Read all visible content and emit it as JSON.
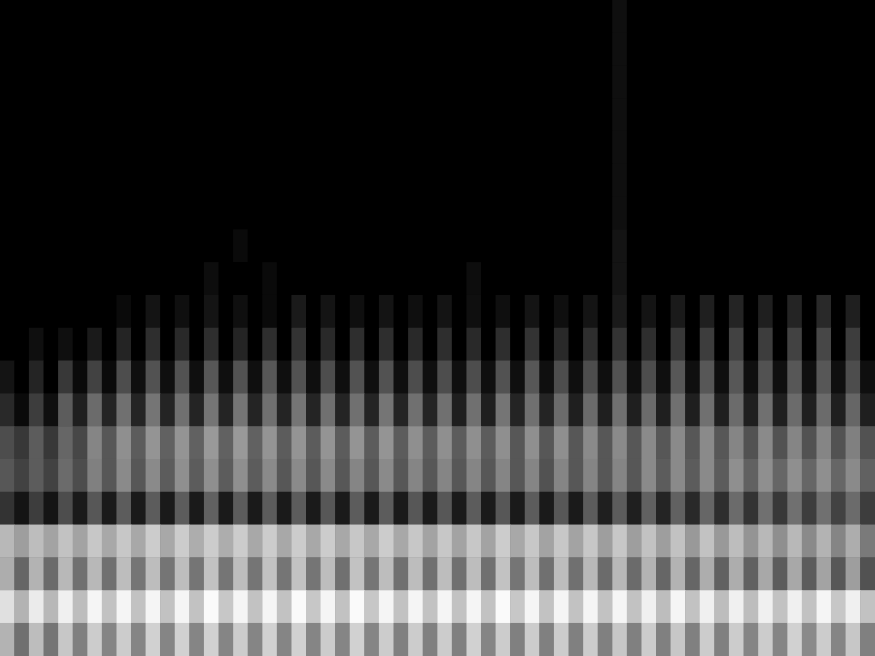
{
  "chart_data": {
    "type": "heatmap",
    "tick_labels": false,
    "grid": false,
    "zlim": [
      0,
      100
    ],
    "cells": [
      [
        0,
        0,
        0,
        0,
        0,
        0,
        0,
        0,
        0,
        0,
        0,
        0,
        0,
        0,
        0,
        0,
        0,
        0,
        0,
        0,
        0,
        0,
        0,
        0,
        0,
        0,
        0,
        0,
        0,
        0,
        0,
        0,
        0,
        0,
        0,
        0,
        0,
        0,
        0,
        0,
        0,
        0,
        6,
        0,
        0,
        0,
        0,
        0,
        0,
        0,
        0,
        0,
        0,
        0,
        0,
        0,
        0,
        0,
        0,
        0
      ],
      [
        0,
        0,
        0,
        0,
        0,
        0,
        0,
        0,
        0,
        0,
        0,
        0,
        0,
        0,
        0,
        0,
        0,
        0,
        0,
        0,
        0,
        0,
        0,
        0,
        0,
        0,
        0,
        0,
        0,
        0,
        0,
        0,
        0,
        0,
        0,
        0,
        0,
        0,
        0,
        0,
        0,
        0,
        6,
        0,
        0,
        0,
        0,
        0,
        0,
        0,
        0,
        0,
        0,
        0,
        0,
        0,
        0,
        0,
        0,
        0
      ],
      [
        0,
        0,
        0,
        0,
        0,
        0,
        0,
        0,
        0,
        0,
        0,
        0,
        0,
        0,
        0,
        0,
        0,
        0,
        0,
        0,
        0,
        0,
        0,
        0,
        0,
        0,
        0,
        0,
        0,
        0,
        0,
        0,
        0,
        0,
        0,
        0,
        0,
        0,
        0,
        0,
        0,
        0,
        6,
        0,
        0,
        0,
        0,
        0,
        0,
        0,
        0,
        0,
        0,
        0,
        0,
        0,
        0,
        0,
        0,
        0
      ],
      [
        0,
        0,
        0,
        0,
        0,
        0,
        0,
        0,
        0,
        0,
        0,
        0,
        0,
        0,
        0,
        0,
        0,
        0,
        0,
        0,
        0,
        0,
        0,
        0,
        0,
        0,
        0,
        0,
        0,
        0,
        0,
        0,
        0,
        0,
        0,
        0,
        0,
        0,
        0,
        0,
        0,
        0,
        6,
        0,
        0,
        0,
        0,
        0,
        0,
        0,
        0,
        0,
        0,
        0,
        0,
        0,
        0,
        0,
        0,
        0
      ],
      [
        0,
        0,
        0,
        0,
        0,
        0,
        0,
        0,
        0,
        0,
        0,
        0,
        0,
        0,
        0,
        0,
        0,
        0,
        0,
        0,
        0,
        0,
        0,
        0,
        0,
        0,
        0,
        0,
        0,
        0,
        0,
        0,
        0,
        0,
        0,
        0,
        0,
        0,
        0,
        0,
        0,
        0,
        6,
        0,
        0,
        0,
        0,
        0,
        0,
        0,
        0,
        0,
        0,
        0,
        0,
        0,
        0,
        0,
        0,
        0
      ],
      [
        0,
        0,
        0,
        0,
        0,
        0,
        0,
        0,
        0,
        0,
        0,
        0,
        0,
        0,
        0,
        0,
        0,
        0,
        0,
        0,
        0,
        0,
        0,
        0,
        0,
        0,
        0,
        0,
        0,
        0,
        0,
        0,
        0,
        0,
        0,
        0,
        0,
        0,
        0,
        0,
        0,
        0,
        6,
        0,
        0,
        0,
        0,
        0,
        0,
        0,
        0,
        0,
        0,
        0,
        0,
        0,
        0,
        0,
        0,
        0
      ],
      [
        0,
        0,
        0,
        0,
        0,
        0,
        0,
        0,
        0,
        0,
        0,
        0,
        0,
        0,
        0,
        0,
        0,
        0,
        0,
        0,
        0,
        0,
        0,
        0,
        0,
        0,
        0,
        0,
        0,
        0,
        0,
        0,
        0,
        0,
        0,
        0,
        0,
        0,
        0,
        0,
        0,
        0,
        6,
        0,
        0,
        0,
        0,
        0,
        0,
        0,
        0,
        0,
        0,
        0,
        0,
        0,
        0,
        0,
        0,
        0
      ],
      [
        0,
        0,
        0,
        0,
        0,
        0,
        0,
        0,
        0,
        0,
        0,
        0,
        0,
        0,
        0,
        0,
        4,
        0,
        0,
        0,
        0,
        0,
        0,
        0,
        0,
        0,
        0,
        0,
        0,
        0,
        0,
        0,
        0,
        0,
        0,
        0,
        0,
        0,
        0,
        0,
        0,
        0,
        8,
        0,
        0,
        0,
        0,
        0,
        0,
        0,
        0,
        0,
        0,
        0,
        0,
        0,
        0,
        0,
        0,
        0
      ],
      [
        0,
        0,
        0,
        0,
        0,
        0,
        0,
        0,
        0,
        0,
        0,
        0,
        0,
        0,
        5,
        0,
        0,
        0,
        4,
        0,
        0,
        0,
        0,
        0,
        0,
        0,
        0,
        0,
        0,
        0,
        0,
        0,
        5,
        0,
        0,
        0,
        0,
        0,
        0,
        0,
        0,
        0,
        8,
        0,
        0,
        0,
        0,
        0,
        0,
        0,
        0,
        0,
        0,
        0,
        0,
        0,
        0,
        0,
        0,
        0
      ],
      [
        0,
        0,
        0,
        0,
        0,
        0,
        0,
        0,
        4,
        0,
        8,
        0,
        6,
        0,
        8,
        0,
        6,
        0,
        4,
        0,
        10,
        0,
        8,
        0,
        6,
        0,
        8,
        0,
        6,
        0,
        8,
        0,
        6,
        0,
        6,
        0,
        8,
        0,
        6,
        0,
        8,
        0,
        10,
        0,
        8,
        0,
        10,
        0,
        12,
        0,
        14,
        0,
        12,
        0,
        14,
        0,
        16,
        0,
        12,
        0
      ],
      [
        0,
        0,
        6,
        0,
        6,
        0,
        10,
        0,
        14,
        0,
        18,
        0,
        16,
        0,
        18,
        0,
        14,
        0,
        18,
        0,
        20,
        0,
        16,
        0,
        18,
        0,
        18,
        0,
        16,
        0,
        18,
        0,
        16,
        0,
        18,
        0,
        20,
        0,
        16,
        0,
        18,
        0,
        20,
        0,
        18,
        0,
        22,
        0,
        24,
        0,
        26,
        0,
        24,
        0,
        26,
        0,
        28,
        0,
        24,
        0
      ],
      [
        8,
        0,
        14,
        0,
        22,
        4,
        26,
        4,
        30,
        6,
        32,
        6,
        32,
        6,
        34,
        6,
        32,
        6,
        34,
        6,
        32,
        6,
        30,
        6,
        32,
        6,
        32,
        6,
        30,
        6,
        30,
        6,
        30,
        6,
        32,
        6,
        34,
        6,
        30,
        6,
        30,
        6,
        32,
        6,
        30,
        6,
        34,
        6,
        34,
        6,
        34,
        6,
        32,
        6,
        34,
        6,
        34,
        6,
        30,
        6
      ],
      [
        16,
        4,
        24,
        6,
        36,
        12,
        42,
        14,
        44,
        14,
        46,
        14,
        44,
        14,
        46,
        14,
        46,
        14,
        44,
        14,
        46,
        14,
        44,
        14,
        44,
        14,
        46,
        14,
        44,
        14,
        44,
        12,
        44,
        12,
        46,
        14,
        44,
        14,
        42,
        12,
        42,
        12,
        44,
        12,
        42,
        12,
        44,
        12,
        44,
        12,
        42,
        12,
        44,
        12,
        42,
        12,
        42,
        12,
        40,
        12
      ],
      [
        30,
        22,
        36,
        22,
        40,
        28,
        52,
        34,
        56,
        36,
        58,
        38,
        58,
        38,
        60,
        38,
        60,
        38,
        58,
        36,
        58,
        36,
        58,
        36,
        58,
        36,
        58,
        36,
        56,
        36,
        56,
        36,
        56,
        36,
        56,
        34,
        56,
        34,
        56,
        34,
        54,
        34,
        54,
        34,
        54,
        34,
        54,
        34,
        54,
        34,
        52,
        32,
        54,
        32,
        52,
        32,
        52,
        32,
        50,
        32
      ],
      [
        34,
        26,
        36,
        26,
        42,
        30,
        50,
        34,
        54,
        34,
        54,
        36,
        56,
        36,
        56,
        36,
        56,
        36,
        54,
        34,
        54,
        34,
        54,
        34,
        52,
        34,
        54,
        34,
        52,
        34,
        52,
        34,
        52,
        34,
        52,
        34,
        52,
        32,
        52,
        34,
        52,
        34,
        52,
        34,
        54,
        36,
        54,
        36,
        54,
        36,
        56,
        38,
        56,
        40,
        56,
        40,
        56,
        40,
        54,
        38
      ],
      [
        20,
        8,
        24,
        8,
        30,
        10,
        34,
        10,
        36,
        10,
        36,
        10,
        36,
        10,
        38,
        10,
        36,
        10,
        36,
        10,
        36,
        10,
        34,
        10,
        36,
        10,
        36,
        10,
        34,
        10,
        34,
        10,
        36,
        10,
        34,
        10,
        36,
        10,
        34,
        10,
        36,
        12,
        36,
        12,
        38,
        14,
        38,
        16,
        40,
        18,
        42,
        20,
        44,
        22,
        44,
        24,
        44,
        26,
        42,
        24
      ],
      [
        72,
        62,
        74,
        64,
        76,
        64,
        78,
        66,
        78,
        66,
        80,
        66,
        80,
        68,
        80,
        68,
        80,
        66,
        80,
        66,
        80,
        66,
        80,
        66,
        78,
        66,
        80,
        66,
        78,
        64,
        78,
        64,
        78,
        64,
        80,
        66,
        78,
        64,
        78,
        64,
        78,
        62,
        78,
        62,
        76,
        62,
        76,
        60,
        76,
        60,
        74,
        58,
        72,
        56,
        72,
        54,
        70,
        52,
        68,
        48
      ],
      [
        68,
        40,
        70,
        42,
        72,
        44,
        72,
        44,
        74,
        46,
        74,
        46,
        74,
        46,
        76,
        46,
        74,
        46,
        76,
        46,
        76,
        46,
        74,
        44,
        76,
        46,
        74,
        44,
        74,
        44,
        74,
        44,
        74,
        44,
        76,
        46,
        74,
        44,
        74,
        44,
        72,
        42,
        72,
        42,
        70,
        40,
        70,
        40,
        68,
        38,
        68,
        38,
        66,
        36,
        66,
        36,
        64,
        34,
        62,
        32
      ],
      [
        88,
        70,
        92,
        72,
        94,
        74,
        96,
        76,
        96,
        76,
        96,
        76,
        96,
        76,
        98,
        78,
        96,
        76,
        96,
        76,
        98,
        78,
        96,
        76,
        98,
        78,
        96,
        76,
        96,
        76,
        96,
        76,
        96,
        76,
        98,
        78,
        96,
        76,
        96,
        76,
        96,
        76,
        96,
        76,
        94,
        74,
        96,
        76,
        94,
        74,
        94,
        74,
        94,
        76,
        94,
        76,
        96,
        78,
        94,
        76
      ],
      [
        70,
        44,
        74,
        46,
        78,
        50,
        80,
        52,
        80,
        52,
        82,
        52,
        82,
        52,
        82,
        52,
        80,
        52,
        82,
        52,
        82,
        52,
        80,
        52,
        82,
        52,
        80,
        50,
        80,
        50,
        80,
        50,
        82,
        52,
        80,
        50,
        80,
        50,
        80,
        50,
        80,
        50,
        78,
        50,
        80,
        50,
        78,
        50,
        80,
        50,
        80,
        52,
        80,
        52,
        82,
        54,
        80,
        52,
        78,
        50
      ]
    ]
  }
}
